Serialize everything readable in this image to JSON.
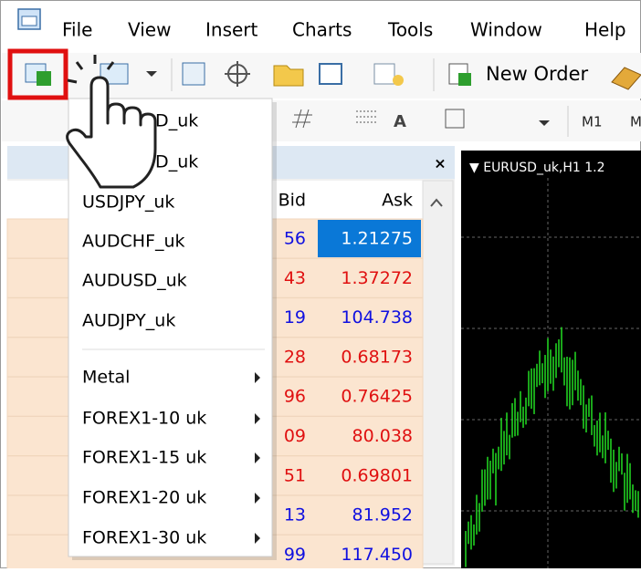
{
  "menu_bar": {
    "items": [
      "File",
      "View",
      "Insert",
      "Charts",
      "Tools",
      "Window",
      "Help"
    ]
  },
  "toolbar": {
    "new_order": "New Order"
  },
  "toolbar2": {
    "items": [
      "A",
      "M1",
      "M"
    ]
  },
  "dropdown": {
    "symbols": [
      "SD_uk",
      "SD_uk",
      "USDJPY_uk",
      "AUDCHF_uk",
      "AUDUSD_uk",
      "AUDJPY_uk"
    ],
    "groups": [
      "Metal",
      "FOREX1-10 uk",
      "FOREX1-15 uk",
      "FOREX1-20 uk",
      "FOREX1-30 uk"
    ]
  },
  "market_watch": {
    "close": "×",
    "columns": [
      "Bid",
      "Ask"
    ],
    "rows": [
      {
        "bid": "56",
        "ask": "1.21275",
        "color": "selected"
      },
      {
        "bid": "43",
        "ask": "1.37272",
        "color": "red"
      },
      {
        "bid": "19",
        "ask": "104.738",
        "color": "blue"
      },
      {
        "bid": "28",
        "ask": "0.68173",
        "color": "red"
      },
      {
        "bid": "96",
        "ask": "0.76425",
        "color": "red"
      },
      {
        "bid": "09",
        "ask": "80.038",
        "color": "red"
      },
      {
        "bid": "51",
        "ask": "0.69801",
        "color": "red"
      },
      {
        "bid": "13",
        "ask": "81.952",
        "color": "blue"
      },
      {
        "bid": "99",
        "ask": "117.450",
        "color": "blue"
      }
    ]
  },
  "chart": {
    "label": "▼ EURUSD_uk,H1  1.2"
  }
}
